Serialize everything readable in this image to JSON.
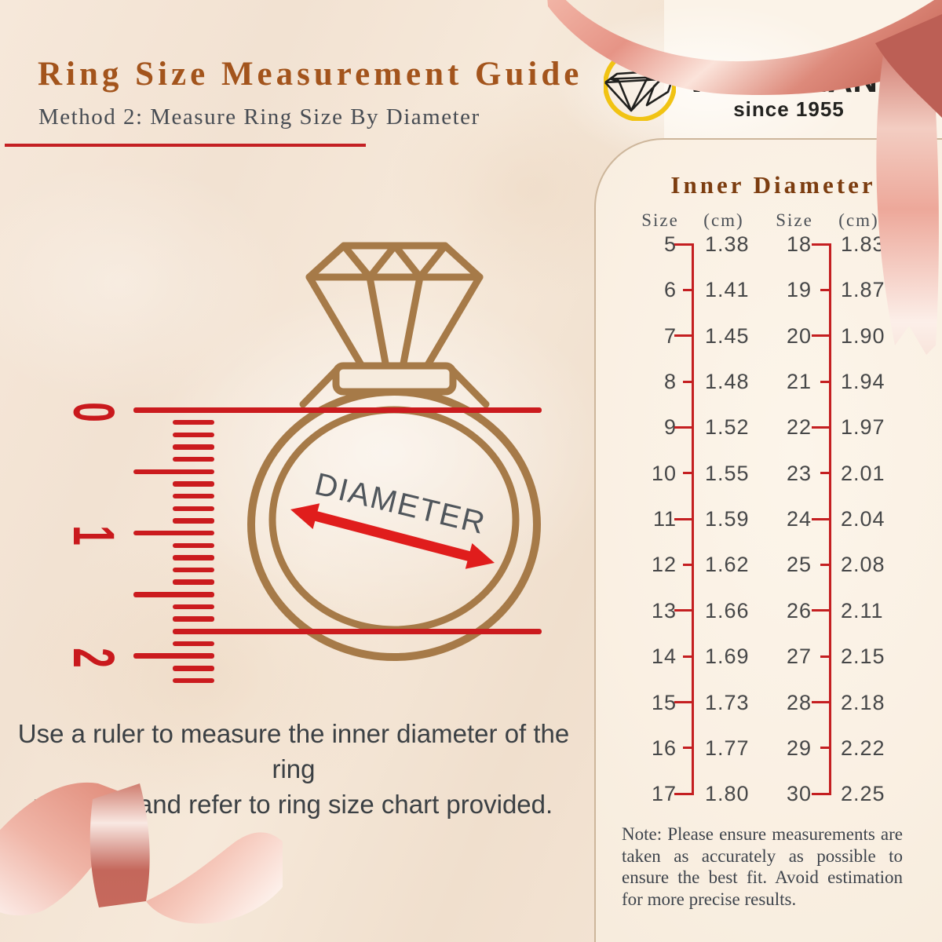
{
  "header": {
    "title": "Ring Size Measurement Guide",
    "subtitle": "Method 2: Measure Ring Size By Diameter"
  },
  "logo": {
    "brand": "WAH CHAN",
    "registered": "®",
    "tagline": "since 1955",
    "icon": "diamond-in-yellow-circle"
  },
  "illustration": {
    "diameter_label": "DIAMETER",
    "ruler_marks": [
      "0",
      "1",
      "2"
    ]
  },
  "instruction": {
    "line1": "Use a ruler to measure the inner diameter of the ring",
    "line2": "you own and refer to ring size chart provided."
  },
  "size_chart": {
    "title": "Inner Diameter",
    "headers": [
      "Size",
      "(cm)",
      "Size",
      "(cm)"
    ],
    "rows": [
      [
        "5",
        "1.38",
        "18",
        "1.83"
      ],
      [
        "6",
        "1.41",
        "19",
        "1.87"
      ],
      [
        "7",
        "1.45",
        "20",
        "1.90"
      ],
      [
        "8",
        "1.48",
        "21",
        "1.94"
      ],
      [
        "9",
        "1.52",
        "22",
        "1.97"
      ],
      [
        "10",
        "1.55",
        "23",
        "2.01"
      ],
      [
        "11",
        "1.59",
        "24",
        "2.04"
      ],
      [
        "12",
        "1.62",
        "25",
        "2.08"
      ],
      [
        "13",
        "1.66",
        "26",
        "2.11"
      ],
      [
        "14",
        "1.69",
        "27",
        "2.15"
      ],
      [
        "15",
        "1.73",
        "28",
        "2.18"
      ],
      [
        "16",
        "1.77",
        "29",
        "2.22"
      ],
      [
        "17",
        "1.80",
        "30",
        "2.25"
      ]
    ]
  },
  "note": "Note: Please ensure measurements are taken as accurately as possible to ensure the best fit. Avoid estimation for more precise results.",
  "colors": {
    "accent_red": "#c81e20",
    "arrow_red": "#e01d1c",
    "title_bronze": "#a3541c",
    "chart_bronze": "#7c3d10",
    "ring_brown": "#a67a48",
    "text_dark": "#42474d",
    "logo_yellow": "#f1c313",
    "ribbon_pink": "#eba294"
  }
}
